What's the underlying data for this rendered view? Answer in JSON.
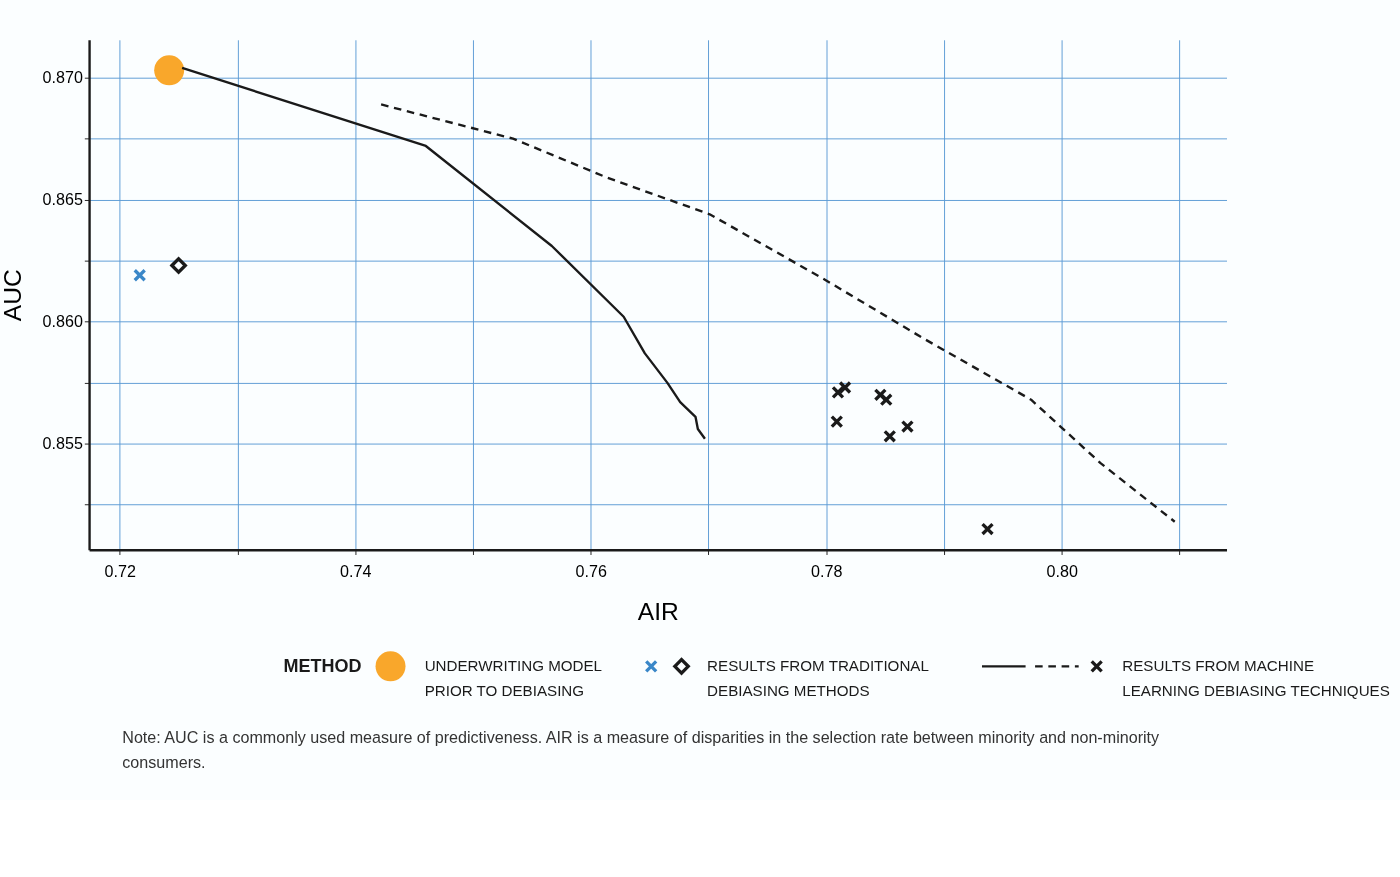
{
  "chart_data": {
    "type": "scatter",
    "xlabel": "AIR",
    "ylabel": "AUC",
    "legend_title": "METHOD",
    "legend": "bottom",
    "grid": true,
    "xlim": [
      0.7174,
      0.814
    ],
    "ylim": [
      0.85065,
      0.87155
    ],
    "xticks": [
      0.72,
      {
        "value": 0.73,
        "label": null
      },
      0.74,
      {
        "value": 0.75,
        "label": null
      },
      0.76,
      {
        "value": 0.77,
        "label": null
      },
      0.78,
      {
        "value": 0.79,
        "label": null
      },
      {
        "value": 0.8,
        "label": "0.80"
      },
      {
        "value": 0.81,
        "label": null
      }
    ],
    "yticks": [
      {
        "value": 0.8525,
        "label": null
      },
      {
        "value": 0.855,
        "label": "0.855"
      },
      {
        "value": 0.8575,
        "label": null
      },
      {
        "value": 0.86,
        "label": "0.860"
      },
      {
        "value": 0.8625,
        "label": null
      },
      {
        "value": 0.865,
        "label": "0.865"
      },
      {
        "value": 0.8675,
        "label": null
      },
      {
        "value": 0.87,
        "label": "0.870"
      }
    ],
    "series": [
      {
        "name": "UNDERWRITING MODEL PRIOR TO DEBIASING",
        "marker": "circle",
        "color": "#f9a72b",
        "x": [
          0.7242
        ],
        "values": [
          0.8703
        ]
      },
      {
        "marker": "cross",
        "color": "#3a87c8",
        "x": [
          0.7217
        ],
        "values": [
          0.8619
        ]
      },
      {
        "name": "RESULTS FROM TRADITIONAL DEBIASING METHODS",
        "marker": "diamond",
        "color": "#1a1a1a",
        "x": [
          0.725
        ],
        "values": [
          0.8623
        ]
      },
      {
        "type": "line",
        "line_style": "solid",
        "color": "#1a1a1a",
        "x": [
          0.7253,
          0.746,
          0.7567,
          0.7628,
          0.7646,
          0.7665,
          0.7676,
          0.7689,
          0.7691,
          0.7697
        ],
        "values": [
          0.8704,
          0.8672,
          0.8631,
          0.8602,
          0.8587,
          0.8575,
          0.8567,
          0.8561,
          0.8556,
          0.8552
        ]
      },
      {
        "type": "line",
        "line_style": "dashed",
        "color": "#1a1a1a",
        "x": [
          0.7422,
          0.7534,
          0.7614,
          0.7701,
          0.7796,
          0.7883,
          0.7974,
          0.8033,
          0.8096
        ],
        "values": [
          0.8689,
          0.8675,
          0.8659,
          0.8644,
          0.8618,
          0.8593,
          0.8568,
          0.8542,
          0.8518
        ]
      },
      {
        "name": "RESULTS FROM MACHINE LEARNING DEBIASING TECHNIQUES",
        "marker": "cross",
        "color": "#1a1a1a",
        "x": [
          0.781,
          0.7816,
          0.7809,
          0.7846,
          0.7851,
          0.7854,
          0.7869,
          0.7937
        ],
        "values": [
          0.8571,
          0.8573,
          0.8559,
          0.857,
          0.8568,
          0.8553,
          0.8557,
          0.8515
        ]
      }
    ],
    "annotations": [
      "Note: AUC is a commonly used measure of predictiveness. AIR is a measure of disparities in the selection rate between minority and non-minority consumers."
    ]
  }
}
